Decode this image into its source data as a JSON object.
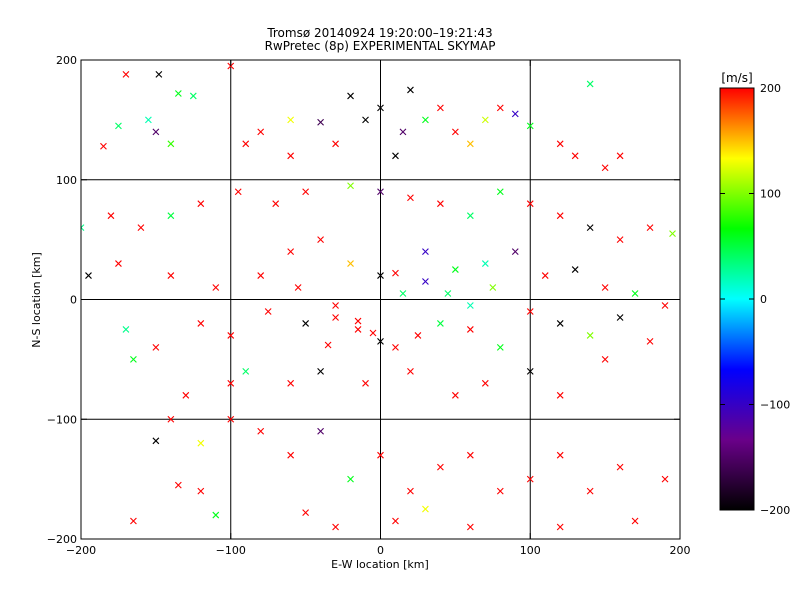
{
  "chart_data": {
    "type": "scatter",
    "title": "Tromsø 20140924  19:20:00–19:21:43",
    "subtitle": "RwPretec (8p) EXPERIMENTAL SKYMAP",
    "xlabel": "E-W location [km]",
    "ylabel": "N-S location [km]",
    "xlim": [
      -200,
      200
    ],
    "ylim": [
      -200,
      200
    ],
    "xticks": [
      -200,
      -100,
      0,
      100,
      200
    ],
    "yticks": [
      -200,
      -100,
      0,
      100,
      200
    ],
    "xtick_labels": [
      "−200",
      "−100",
      "0",
      "100",
      "200"
    ],
    "ytick_labels": [
      "−200",
      "−100",
      "0",
      "100",
      "200"
    ],
    "grid": true,
    "colorbar": {
      "label": "[m/s]",
      "range": [
        -200,
        200
      ],
      "ticks": [
        200,
        100,
        0,
        -100,
        -200
      ],
      "tick_labels": [
        "200",
        "100",
        "0",
        "−100",
        "−200"
      ],
      "colormap": [
        "#000000",
        "#6a008a",
        "#0000ff",
        "#00ffff",
        "#00ff00",
        "#ffff00",
        "#ff0000"
      ]
    },
    "marker_types": [
      "dot",
      "cross"
    ],
    "series": [
      {
        "marker": "cross",
        "points": [
          [
            -170,
            188,
            200
          ],
          [
            -148,
            188,
            -200
          ],
          [
            -100,
            195,
            200
          ],
          [
            -135,
            172,
            60
          ],
          [
            -125,
            170,
            40
          ],
          [
            -175,
            145,
            40
          ],
          [
            -150,
            140,
            -150
          ],
          [
            -90,
            130,
            200
          ],
          [
            -80,
            140,
            200
          ],
          [
            -60,
            120,
            200
          ],
          [
            -185,
            128,
            200
          ],
          [
            -140,
            130,
            80
          ],
          [
            -155,
            150,
            20
          ],
          [
            -60,
            150,
            130
          ],
          [
            -40,
            148,
            -160
          ],
          [
            -30,
            130,
            200
          ],
          [
            -20,
            170,
            -200
          ],
          [
            -10,
            150,
            -200
          ],
          [
            0,
            160,
            -200
          ],
          [
            10,
            120,
            -200
          ],
          [
            15,
            140,
            -150
          ],
          [
            20,
            175,
            -200
          ],
          [
            30,
            150,
            60
          ],
          [
            40,
            160,
            200
          ],
          [
            50,
            140,
            200
          ],
          [
            60,
            130,
            150
          ],
          [
            70,
            150,
            120
          ],
          [
            80,
            160,
            200
          ],
          [
            90,
            155,
            -100
          ],
          [
            100,
            145,
            60
          ],
          [
            140,
            180,
            40
          ],
          [
            120,
            130,
            200
          ],
          [
            130,
            120,
            200
          ],
          [
            150,
            110,
            200
          ],
          [
            160,
            120,
            200
          ],
          [
            -200,
            60,
            30
          ],
          [
            -180,
            70,
            200
          ],
          [
            -160,
            60,
            200
          ],
          [
            -140,
            70,
            50
          ],
          [
            -120,
            80,
            200
          ],
          [
            -95,
            90,
            200
          ],
          [
            -70,
            80,
            200
          ],
          [
            -50,
            90,
            200
          ],
          [
            -20,
            95,
            100
          ],
          [
            0,
            90,
            -150
          ],
          [
            20,
            85,
            200
          ],
          [
            40,
            80,
            200
          ],
          [
            60,
            70,
            40
          ],
          [
            80,
            90,
            60
          ],
          [
            100,
            80,
            200
          ],
          [
            120,
            70,
            200
          ],
          [
            140,
            60,
            -200
          ],
          [
            160,
            50,
            200
          ],
          [
            180,
            60,
            200
          ],
          [
            195,
            55,
            100
          ],
          [
            -195,
            20,
            -200
          ],
          [
            -175,
            30,
            200
          ],
          [
            -140,
            20,
            200
          ],
          [
            -110,
            10,
            200
          ],
          [
            -80,
            20,
            200
          ],
          [
            -60,
            40,
            200
          ],
          [
            -40,
            50,
            200
          ],
          [
            -20,
            30,
            150
          ],
          [
            0,
            20,
            -200
          ],
          [
            10,
            22,
            200
          ],
          [
            30,
            40,
            -100
          ],
          [
            50,
            25,
            60
          ],
          [
            70,
            30,
            20
          ],
          [
            90,
            40,
            -150
          ],
          [
            110,
            20,
            200
          ],
          [
            130,
            25,
            -200
          ],
          [
            150,
            10,
            200
          ],
          [
            170,
            5,
            60
          ],
          [
            190,
            -5,
            200
          ],
          [
            -170,
            -25,
            30
          ],
          [
            -165,
            -50,
            60
          ],
          [
            -150,
            -40,
            200
          ],
          [
            -120,
            -20,
            200
          ],
          [
            -100,
            -30,
            200
          ],
          [
            -75,
            -10,
            200
          ],
          [
            -50,
            -20,
            -200
          ],
          [
            -30,
            -15,
            200
          ],
          [
            -15,
            -25,
            200
          ],
          [
            0,
            -35,
            -200
          ],
          [
            10,
            -40,
            200
          ],
          [
            25,
            -30,
            200
          ],
          [
            40,
            -20,
            50
          ],
          [
            60,
            -25,
            200
          ],
          [
            80,
            -40,
            60
          ],
          [
            100,
            -10,
            200
          ],
          [
            120,
            -20,
            -200
          ],
          [
            140,
            -30,
            100
          ],
          [
            160,
            -15,
            -200
          ],
          [
            180,
            -35,
            200
          ],
          [
            -140,
            -100,
            200
          ],
          [
            -150,
            -118,
            -200
          ],
          [
            -120,
            -120,
            130
          ],
          [
            -100,
            -100,
            200
          ],
          [
            -80,
            -110,
            200
          ],
          [
            -60,
            -130,
            200
          ],
          [
            -40,
            -110,
            -150
          ],
          [
            -20,
            -150,
            60
          ],
          [
            0,
            -130,
            200
          ],
          [
            20,
            -160,
            200
          ],
          [
            40,
            -140,
            200
          ],
          [
            60,
            -130,
            200
          ],
          [
            80,
            -160,
            200
          ],
          [
            100,
            -150,
            200
          ],
          [
            120,
            -130,
            200
          ],
          [
            140,
            -160,
            200
          ],
          [
            160,
            -140,
            200
          ],
          [
            190,
            -150,
            200
          ],
          [
            -135,
            -155,
            200
          ],
          [
            -110,
            -180,
            60
          ],
          [
            -50,
            -178,
            200
          ],
          [
            -30,
            -190,
            200
          ],
          [
            10,
            -185,
            200
          ],
          [
            30,
            -175,
            130
          ],
          [
            60,
            -190,
            200
          ],
          [
            120,
            -190,
            200
          ],
          [
            170,
            -185,
            200
          ],
          [
            -165,
            -185,
            200
          ],
          [
            -120,
            -160,
            200
          ],
          [
            -130,
            -80,
            200
          ],
          [
            -100,
            -70,
            200
          ],
          [
            -90,
            -60,
            40
          ],
          [
            -60,
            -70,
            200
          ],
          [
            -40,
            -60,
            -200
          ],
          [
            -10,
            -70,
            200
          ],
          [
            20,
            -60,
            200
          ],
          [
            50,
            -80,
            200
          ],
          [
            70,
            -70,
            200
          ],
          [
            100,
            -60,
            -200
          ],
          [
            120,
            -80,
            200
          ],
          [
            150,
            -50,
            200
          ],
          [
            -55,
            10,
            200
          ],
          [
            -30,
            -5,
            200
          ],
          [
            -15,
            -18,
            200
          ],
          [
            -5,
            -28,
            200
          ],
          [
            -35,
            -38,
            200
          ],
          [
            15,
            5,
            40
          ],
          [
            30,
            15,
            -100
          ],
          [
            45,
            5,
            40
          ],
          [
            60,
            -5,
            20
          ],
          [
            75,
            10,
            100
          ]
        ]
      }
    ]
  }
}
